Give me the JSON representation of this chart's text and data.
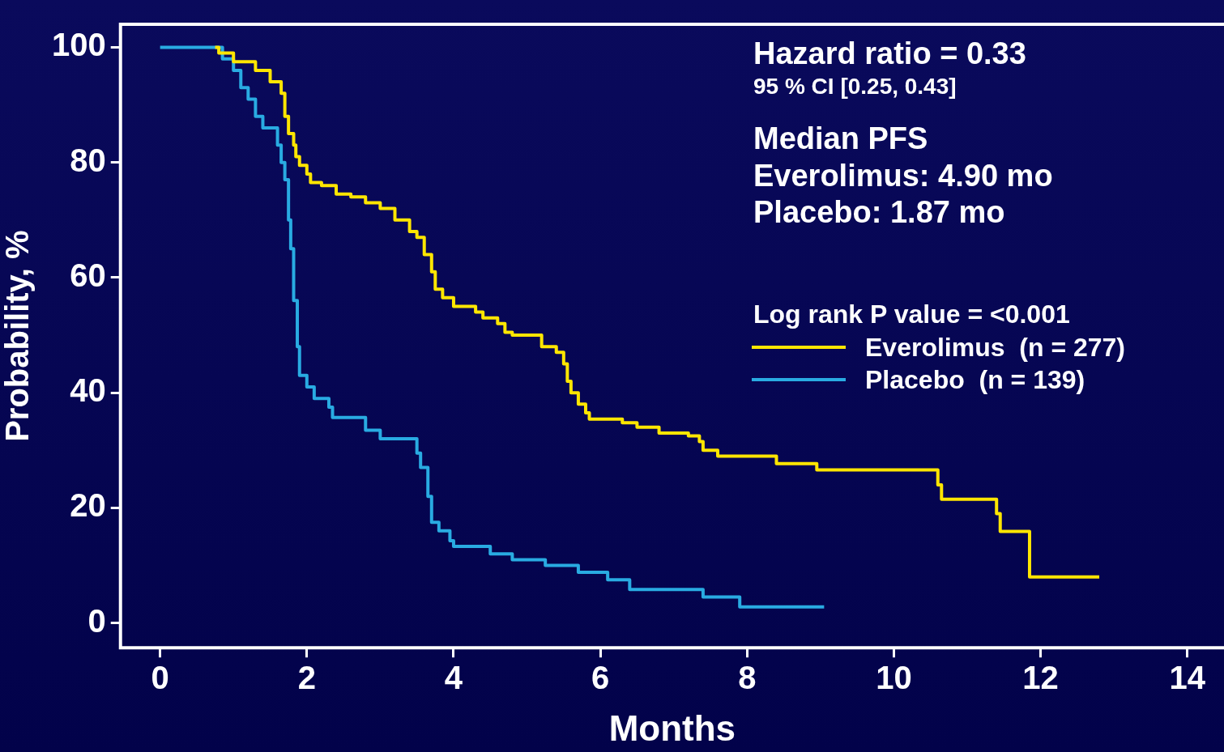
{
  "chart_data": {
    "type": "step",
    "xlabel": "Months",
    "ylabel": "Probability, %",
    "xlim": [
      -0.54,
      14.5
    ],
    "ylim": [
      -4.3,
      104
    ],
    "xticks": [
      0,
      2,
      4,
      6,
      8,
      10,
      12,
      14
    ],
    "yticks": [
      0,
      20,
      40,
      60,
      80,
      100
    ],
    "grid": false,
    "legend": "right",
    "line_style": "solid",
    "marker": "none",
    "legend_title": "Log rank P value = <0.001",
    "annotations": [
      "Hazard ratio = 0.33",
      "95 % CI [0.25, 0.43]",
      "Median PFS",
      "Everolimus: 4.90 mo",
      "Placebo: 1.87 mo"
    ],
    "series": [
      {
        "name": "Everolimus  (n = 277)",
        "color": "#ffe600",
        "x": [
          0.75,
          0.8,
          1.0,
          1.3,
          1.5,
          1.65,
          1.7,
          1.75,
          1.82,
          1.85,
          1.9,
          2.0,
          2.05,
          2.2,
          2.4,
          2.6,
          2.8,
          3.0,
          3.2,
          3.4,
          3.5,
          3.6,
          3.7,
          3.75,
          3.85,
          4.0,
          4.3,
          4.4,
          4.6,
          4.7,
          4.8,
          5.2,
          5.4,
          5.5,
          5.55,
          5.6,
          5.7,
          5.8,
          5.85,
          6.3,
          6.5,
          6.8,
          7.2,
          7.35,
          7.4,
          7.6,
          8.4,
          8.95,
          10.6,
          10.65,
          11.4,
          11.45,
          11.85,
          12.8
        ],
        "values": [
          100,
          99,
          97.5,
          96,
          94,
          92,
          88,
          85,
          83,
          81,
          79.5,
          78,
          76.5,
          76,
          74.5,
          74,
          73,
          72,
          70,
          68,
          67,
          64,
          61,
          58,
          56.5,
          55,
          54,
          53,
          52,
          50.5,
          50,
          48,
          47,
          45,
          42,
          40,
          38,
          36.5,
          35.4,
          34.8,
          34,
          33,
          32.5,
          31.5,
          30,
          29,
          27.7,
          26.6,
          24,
          21.5,
          19,
          15.9,
          8,
          8
        ]
      },
      {
        "name": "Placebo  (n = 139)",
        "color": "#29abe2",
        "x": [
          0,
          0.85,
          1.0,
          1.1,
          1.2,
          1.3,
          1.4,
          1.6,
          1.65,
          1.7,
          1.75,
          1.78,
          1.82,
          1.87,
          1.9,
          2.0,
          2.1,
          2.3,
          2.35,
          2.8,
          3.0,
          3.5,
          3.55,
          3.65,
          3.7,
          3.8,
          3.95,
          4.0,
          4.5,
          4.8,
          5.25,
          5.7,
          6.1,
          6.4,
          7.4,
          7.9,
          9.05
        ],
        "values": [
          100,
          98,
          96,
          93,
          91,
          88,
          86,
          83,
          80,
          77,
          70,
          65,
          56,
          48,
          43,
          41,
          39,
          37.5,
          35.7,
          33.5,
          32,
          29.5,
          27,
          22,
          17.5,
          16,
          14.3,
          13.3,
          12,
          11,
          10,
          8.8,
          7.5,
          5.8,
          4.5,
          2.8,
          2.8
        ]
      }
    ]
  }
}
